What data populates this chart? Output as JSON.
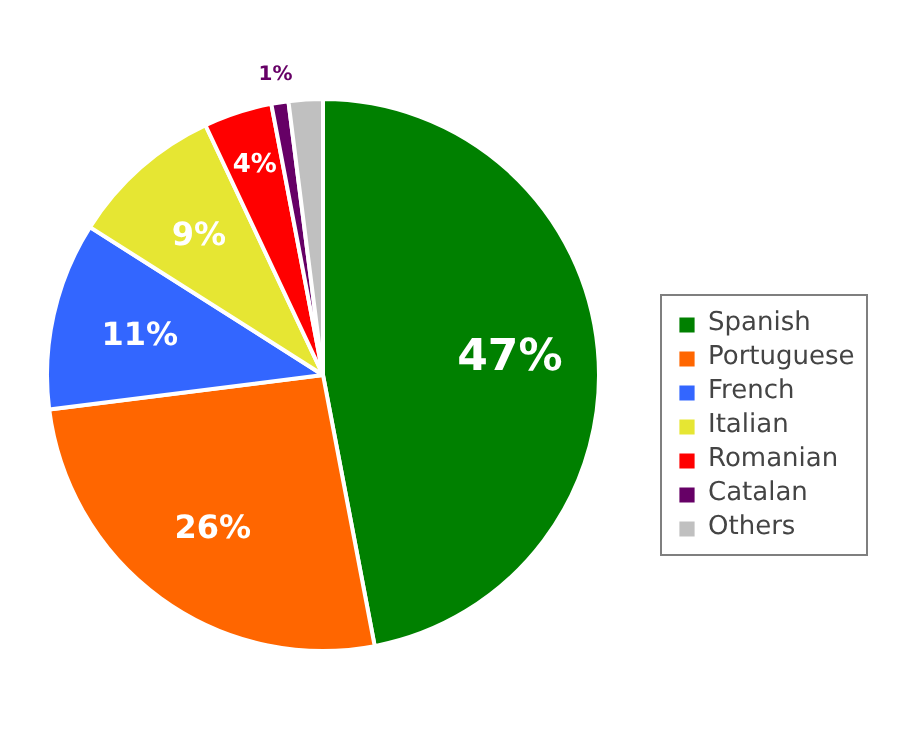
{
  "chart_data": {
    "type": "pie",
    "categories": [
      "Spanish",
      "Portuguese",
      "French",
      "Italian",
      "Romanian",
      "Catalan",
      "Others"
    ],
    "values": [
      47,
      26,
      11,
      9,
      4,
      1,
      2
    ],
    "colors": [
      "#008000",
      "#ff6600",
      "#3366ff",
      "#e6e633",
      "#ff0000",
      "#660066",
      "#c0c0c0"
    ],
    "value_labels": [
      "47%",
      "26%",
      "11%",
      "9%",
      "4%",
      "1%",
      null
    ],
    "legend": "right"
  }
}
